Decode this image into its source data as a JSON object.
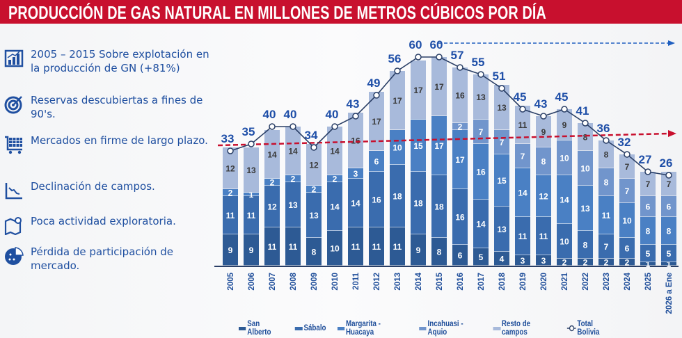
{
  "title": "PRODUCCIÓN DE GAS NATURAL EN MILLONES DE METROS CÚBICOS POR DÍA",
  "bullets": [
    {
      "icon": "bar-chart-icon",
      "text": "2005 – 2015 Sobre explotación en la producción de GN (+81%)"
    },
    {
      "icon": "target-icon",
      "text": "Reservas descubiertas a fines de 90's."
    },
    {
      "icon": "cart-icon",
      "text": "Mercados en firme de largo plazo."
    },
    {
      "icon": "decline-chart-icon",
      "text": "Declinación de campos."
    },
    {
      "icon": "map-pin-icon",
      "text": "Poca actividad exploratoria."
    },
    {
      "icon": "pie-chart-icon",
      "text": "Pérdida de participación de mercado."
    }
  ],
  "chart_data": {
    "type": "bar",
    "stacked": true,
    "title": "PRODUCCIÓN DE GAS NATURAL EN MILLONES DE METROS CÚBICOS POR DÍA",
    "categories": [
      "2005",
      "2006",
      "2007",
      "2008",
      "2009",
      "2010",
      "2011",
      "2012",
      "2013",
      "2014",
      "2015",
      "2016",
      "2017",
      "2018",
      "2019",
      "2020",
      "2021",
      "2022",
      "2023",
      "2024",
      "2025",
      "2026 a Ene"
    ],
    "series": [
      {
        "name": "San Alberto",
        "color": "#2d5a94",
        "values": [
          9,
          9,
          11,
          11,
          8,
          10,
          11,
          11,
          11,
          9,
          8,
          6,
          5,
          4,
          3,
          3,
          2,
          2,
          2,
          2,
          1,
          1
        ]
      },
      {
        "name": "Sábalo",
        "color": "#3a6cae",
        "values": [
          11,
          11,
          12,
          13,
          13,
          14,
          14,
          16,
          18,
          18,
          18,
          16,
          14,
          13,
          11,
          11,
          10,
          8,
          7,
          6,
          5,
          5
        ]
      },
      {
        "name": "Margarita - Huacaya",
        "color": "#4a80c4",
        "values": [
          2,
          1,
          2,
          2,
          2,
          2,
          3,
          6,
          10,
          15,
          17,
          17,
          16,
          15,
          14,
          12,
          14,
          13,
          11,
          10,
          8,
          8
        ]
      },
      {
        "name": "Incahuasi - Aquio",
        "color": "#7195cc",
        "values": [
          null,
          null,
          null,
          null,
          null,
          null,
          null,
          null,
          null,
          null,
          null,
          2,
          7,
          7,
          7,
          8,
          10,
          10,
          8,
          7,
          6,
          6
        ]
      },
      {
        "name": "Resto de campos",
        "color": "#a8badb",
        "values": [
          12,
          13,
          14,
          14,
          12,
          14,
          16,
          17,
          17,
          17,
          17,
          16,
          13,
          13,
          11,
          9,
          9,
          8,
          8,
          7,
          7,
          7
        ]
      }
    ],
    "line": {
      "name": "Total Bolivia",
      "color": "#2a3f66",
      "values": [
        33,
        35,
        40,
        40,
        34,
        40,
        43,
        49,
        56,
        60,
        60,
        57,
        55,
        51,
        45,
        43,
        45,
        41,
        36,
        32,
        27,
        26
      ]
    },
    "trend_line_color": "#c8102e",
    "reference_line_color": "#1f5fc0",
    "ylim": [
      0,
      65
    ],
    "grid": false,
    "legend": "bottom"
  }
}
